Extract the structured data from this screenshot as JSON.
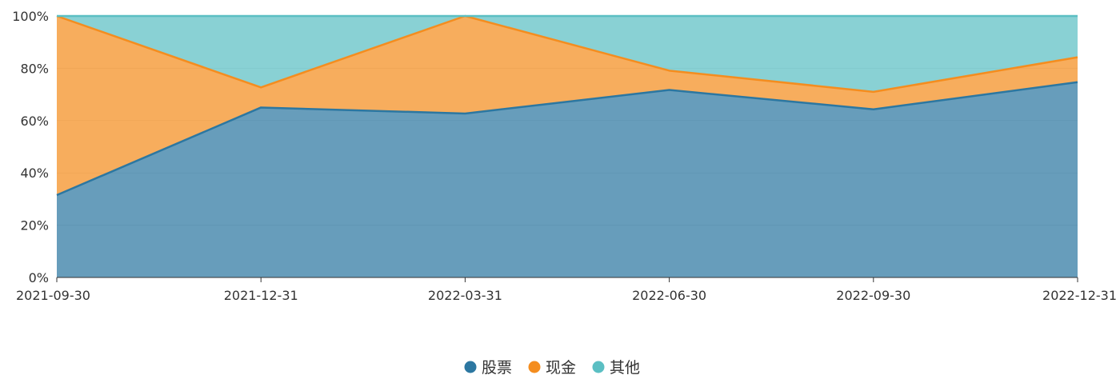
{
  "chart_data": {
    "type": "area",
    "stacked": true,
    "normalized_percent": true,
    "x": [
      "2021-09-30",
      "2021-12-31",
      "2022-03-31",
      "2022-06-30",
      "2022-09-30",
      "2022-12-31"
    ],
    "series": [
      {
        "name": "股票",
        "color": "#2c77a1",
        "values": [
          31.5,
          65.0,
          62.7,
          71.7,
          64.3,
          74.7
        ]
      },
      {
        "name": "现金",
        "color": "#f48d1f",
        "values": [
          68.5,
          7.7,
          37.3,
          7.4,
          6.7,
          9.5
        ]
      },
      {
        "name": "其他",
        "color": "#5bbfc3",
        "values": [
          0.0,
          27.3,
          0.0,
          20.9,
          29.0,
          15.8
        ]
      }
    ],
    "y_ticks": [
      "0%",
      "20%",
      "40%",
      "60%",
      "80%",
      "100%"
    ],
    "ylim": [
      0,
      100
    ],
    "grid": true,
    "legend_position": "bottom-center"
  }
}
